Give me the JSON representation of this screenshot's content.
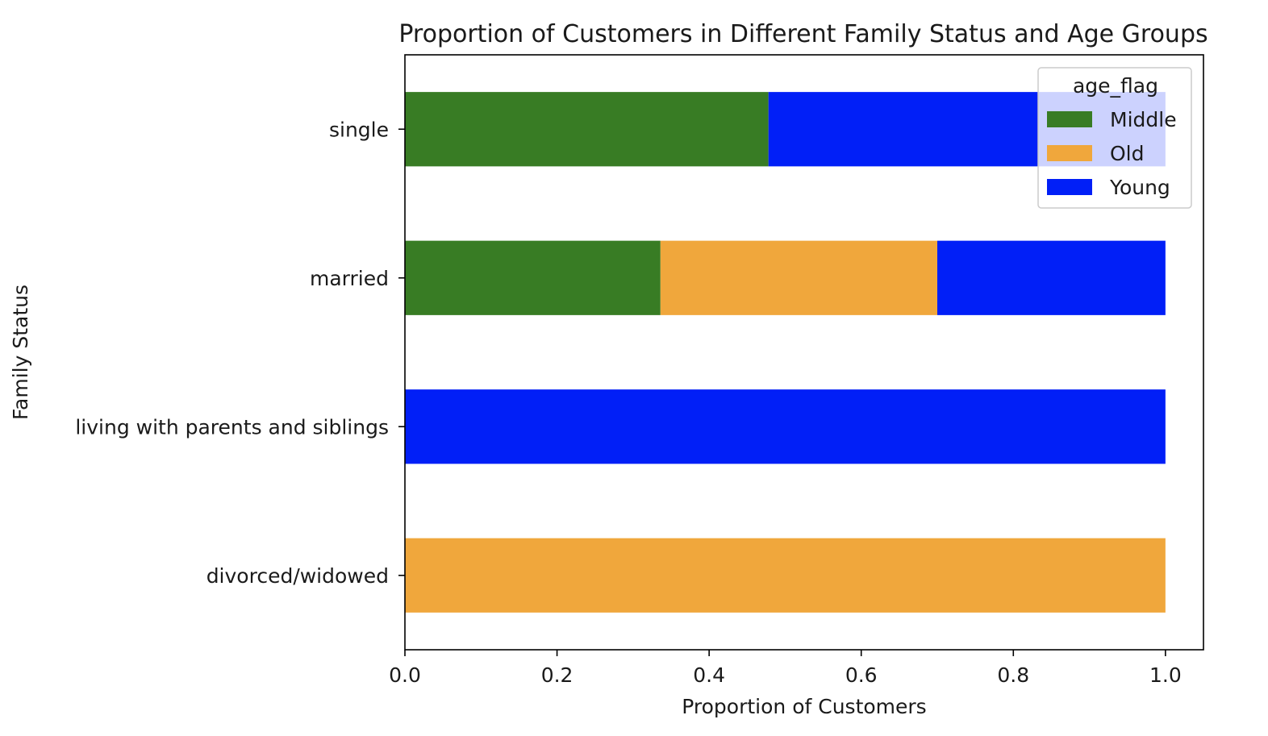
{
  "chart_data": {
    "type": "bar",
    "orientation": "horizontal",
    "stacked": true,
    "title": "Proportion of Customers in Different Family Status and Age Groups",
    "xlabel": "Proportion of Customers",
    "ylabel": "Family Status",
    "xlim": [
      0.0,
      1.05
    ],
    "xticks": [
      "0.0",
      "0.2",
      "0.4",
      "0.6",
      "0.8",
      "1.0"
    ],
    "grid": false,
    "categories": [
      "divorced/widowed",
      "living with parents and siblings",
      "married",
      "single"
    ],
    "series": [
      {
        "name": "Middle",
        "color": "#387c24",
        "values": [
          0.0,
          0.0,
          0.336,
          0.478
        ]
      },
      {
        "name": "Old",
        "color": "#f0a73c",
        "values": [
          1.0,
          0.0,
          0.364,
          0.0
        ]
      },
      {
        "name": "Young",
        "color": "#011ff7",
        "values": [
          0.0,
          1.0,
          0.3,
          0.522
        ]
      }
    ],
    "legend": {
      "title": "age_flag",
      "placement": "upper right"
    }
  }
}
